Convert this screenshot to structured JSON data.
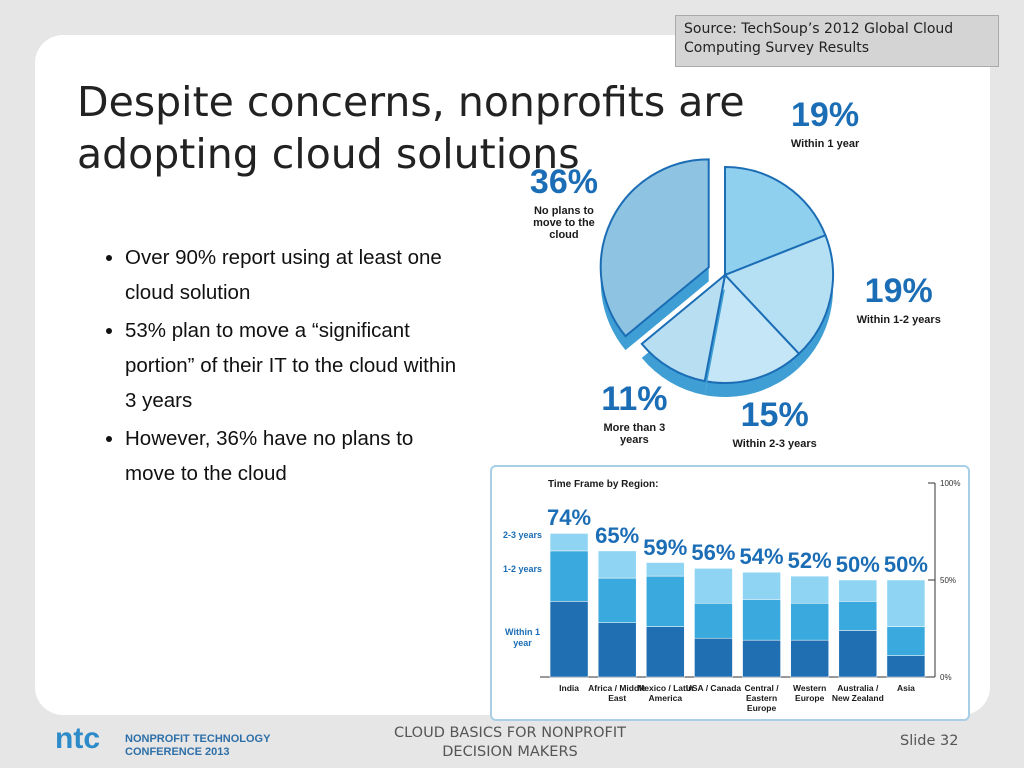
{
  "source": "Source: TechSoup’s 2012 Global Cloud Computing Survey Results",
  "title": "Despite concerns, nonprofits are adopting cloud solutions",
  "bullets": [
    "Over 90% report using at least one cloud solution",
    "53% plan to move a “significant portion” of their IT to the cloud within 3 years",
    "However, 36% have no plans to move to the cloud"
  ],
  "footer": {
    "logo_short": "ntc",
    "logo_line1": "NONPROFIT TECHNOLOGY",
    "logo_line2": "CONFERENCE 2013",
    "center": "CLOUD BASICS FOR NONPROFIT DECISION MAKERS",
    "slide": "Slide 32"
  },
  "chart_data": [
    {
      "type": "pie",
      "categories": [
        "Within 1 year",
        "Within 1-2 years",
        "Within 2-3 years",
        "More than 3 years",
        "No plans to move to the cloud"
      ],
      "values": [
        19,
        19,
        15,
        11,
        36
      ],
      "value_labels": [
        "19%",
        "19%",
        "15%",
        "11%",
        "36%"
      ],
      "colors": [
        "#8fd0ee",
        "#b5e0f4",
        "#c4e6f6",
        "#b8def2",
        "#8ec4e2"
      ]
    },
    {
      "type": "stacked_bar",
      "title": "Time Frame by Region:",
      "categories": [
        "India",
        "Africa / Middle East",
        "Mexico / Latin America",
        "USA / Canada",
        "Central / Eastern Europe",
        "Western Europe",
        "Australia / New Zealand",
        "Asia"
      ],
      "series": [
        {
          "name": "Within 1 year",
          "color": "#1f6fb2",
          "values": [
            39,
            28,
            26,
            20,
            19,
            19,
            24,
            11
          ]
        },
        {
          "name": "1-2 years",
          "color": "#3aa9dd",
          "values": [
            26,
            23,
            26,
            18,
            21,
            19,
            15,
            15
          ]
        },
        {
          "name": "2-3 years",
          "color": "#8fd4f3",
          "values": [
            9,
            14,
            7,
            18,
            14,
            14,
            11,
            24
          ]
        }
      ],
      "total_labels": [
        "74%",
        "65%",
        "59%",
        "56%",
        "54%",
        "52%",
        "50%",
        "50%"
      ],
      "ylim": [
        0,
        100
      ],
      "yticks": [
        {
          "value": 0,
          "label": "0%"
        },
        {
          "value": 50,
          "label": "50%"
        },
        {
          "value": 100,
          "label": "100%"
        }
      ]
    }
  ]
}
